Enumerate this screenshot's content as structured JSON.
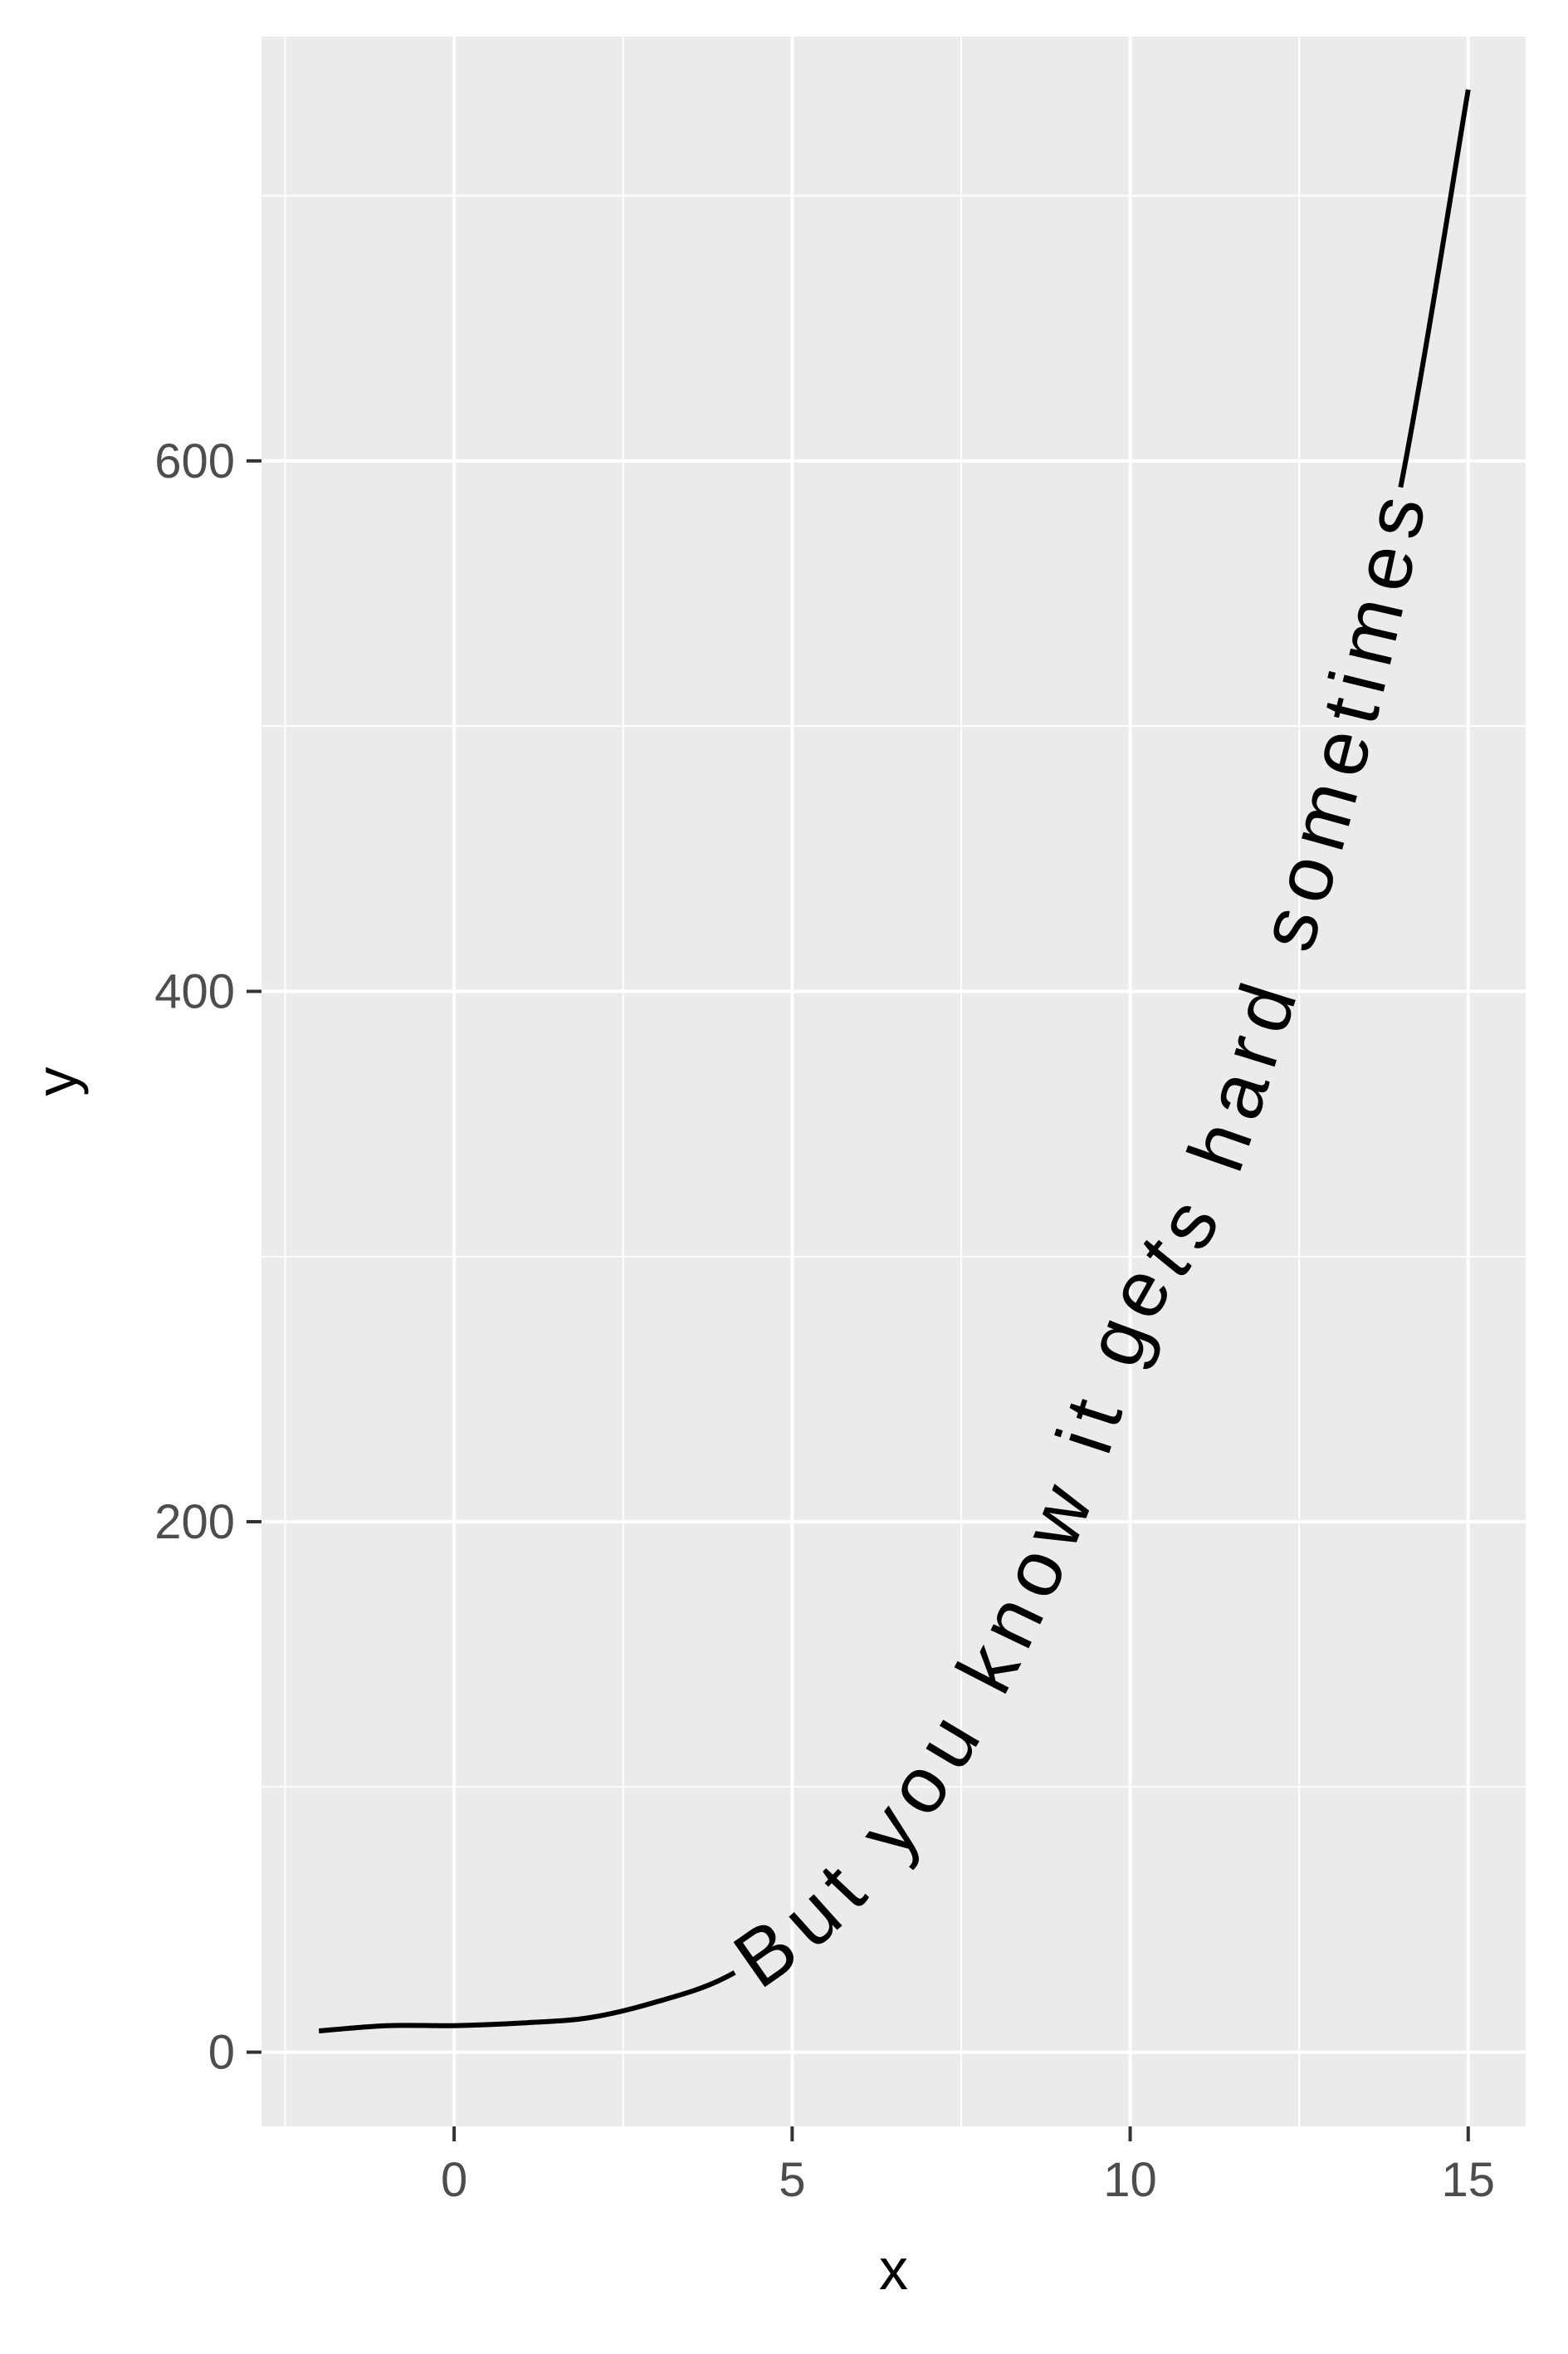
{
  "chart_data": {
    "type": "line",
    "title": "",
    "xlabel": "x",
    "ylabel": "y",
    "xlim": [
      -2.85,
      15.85
    ],
    "ylim": [
      -28,
      760
    ],
    "x_ticks": [
      0,
      5,
      10,
      15
    ],
    "x_tick_labels": [
      "0",
      "5",
      "10",
      "15"
    ],
    "x_minor": [
      -2.5,
      2.5,
      7.5,
      12.5
    ],
    "y_ticks": [
      0,
      200,
      400,
      600
    ],
    "y_tick_labels": [
      "0",
      "200",
      "400",
      "600"
    ],
    "y_minor": [
      100,
      300,
      500,
      700
    ],
    "grid": true,
    "legend": "none",
    "curve_label": "But you know it gets hard sometimes",
    "curve_label_start_x": 4.15,
    "curve_label_end_x": 14.0,
    "series": [
      {
        "x": [
          -2,
          -1,
          0,
          1,
          2,
          3,
          4,
          5,
          6,
          7,
          8,
          9,
          10,
          11,
          12,
          13,
          14,
          15
        ],
        "values": [
          8,
          10,
          10,
          11,
          13,
          19,
          28,
          45,
          70,
          105,
          150,
          207,
          280,
          320,
          395,
          480,
          590,
          740
        ]
      }
    ],
    "colors": {
      "panel": "#ebebeb",
      "grid": "#ffffff",
      "line": "#000000",
      "ticks": "#333333"
    }
  }
}
